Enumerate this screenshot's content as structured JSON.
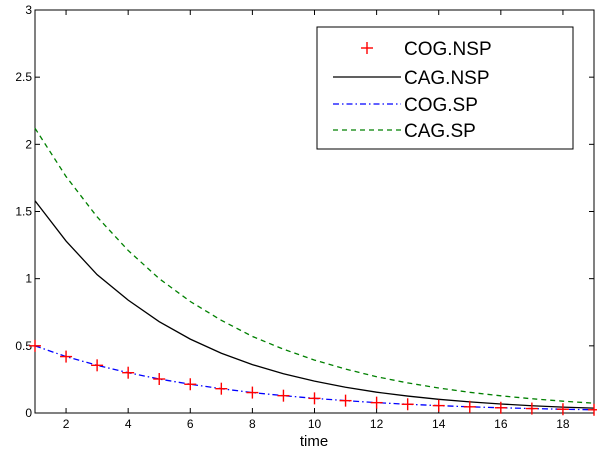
{
  "chart_data": {
    "type": "line",
    "title": "",
    "xlabel": "time",
    "ylabel": "",
    "xlim": [
      1,
      19
    ],
    "ylim": [
      0,
      3
    ],
    "xticks": [
      2,
      4,
      6,
      8,
      10,
      12,
      14,
      16,
      18
    ],
    "yticks": [
      0,
      0.5,
      1,
      1.5,
      2,
      2.5,
      3
    ],
    "ytick_labels": [
      "0",
      "0.5",
      "1",
      "1.5",
      "2",
      "2.5",
      "3"
    ],
    "grid": false,
    "legend_position": "top-right",
    "x": [
      1,
      2,
      3,
      4,
      5,
      6,
      7,
      8,
      9,
      10,
      11,
      12,
      13,
      14,
      15,
      16,
      17,
      18,
      19
    ],
    "series": [
      {
        "name": "COG.NSP",
        "style": "markers",
        "marker": "+",
        "color": "#ff0000",
        "values": [
          0.5,
          0.42,
          0.355,
          0.3,
          0.253,
          0.214,
          0.181,
          0.152,
          0.129,
          0.109,
          0.092,
          0.077,
          0.065,
          0.055,
          0.046,
          0.039,
          0.033,
          0.028,
          0.024
        ]
      },
      {
        "name": "CAG.NSP",
        "style": "solid",
        "color": "#000000",
        "values": [
          1.58,
          1.28,
          1.03,
          0.84,
          0.68,
          0.55,
          0.445,
          0.36,
          0.292,
          0.237,
          0.192,
          0.155,
          0.126,
          0.102,
          0.083,
          0.067,
          0.054,
          0.044,
          0.036
        ]
      },
      {
        "name": "COG.SP",
        "style": "dash-dot",
        "color": "#0000ff",
        "values": [
          0.5,
          0.42,
          0.355,
          0.3,
          0.253,
          0.214,
          0.181,
          0.152,
          0.129,
          0.109,
          0.092,
          0.077,
          0.065,
          0.055,
          0.046,
          0.039,
          0.033,
          0.028,
          0.024
        ]
      },
      {
        "name": "CAG.SP",
        "style": "dashed",
        "color": "#008000",
        "values": [
          2.12,
          1.76,
          1.46,
          1.21,
          1.0,
          0.83,
          0.69,
          0.57,
          0.475,
          0.394,
          0.327,
          0.27,
          0.224,
          0.186,
          0.154,
          0.128,
          0.106,
          0.088,
          0.073
        ]
      }
    ]
  }
}
